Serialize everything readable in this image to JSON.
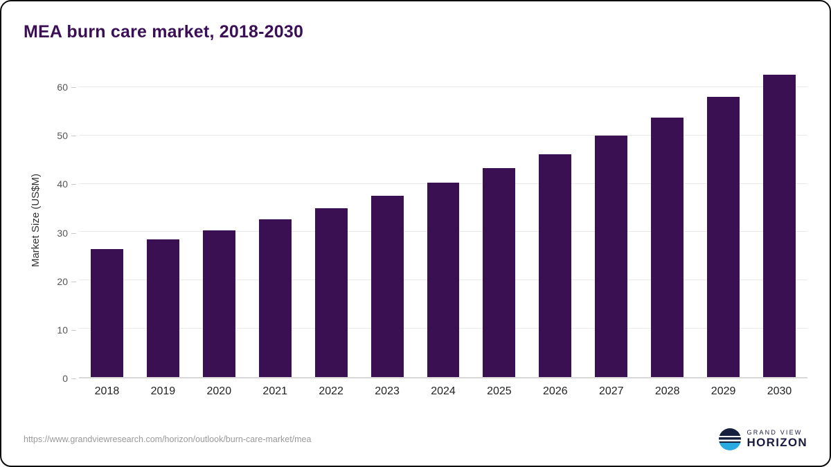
{
  "page": {
    "title": "MEA burn care market, 2018-2030",
    "source_url": "https://www.grandviewresearch.com/horizon/outlook/burn-care-market/mea",
    "logo": {
      "line1": "GRAND VIEW",
      "line2": "HORIZON"
    }
  },
  "colors": {
    "bar": "#3b1053",
    "title": "#3b0f56",
    "gridline": "#e9e9e9",
    "axis": "#d8d8d8",
    "tick_label": "#555555",
    "x_label": "#222222",
    "url_text": "#999999",
    "logo_navy": "#15203e",
    "logo_blue": "#2aaae1"
  },
  "chart_data": {
    "type": "bar",
    "title": "MEA burn care market, 2018-2030",
    "categories": [
      "2018",
      "2019",
      "2020",
      "2021",
      "2022",
      "2023",
      "2024",
      "2025",
      "2026",
      "2027",
      "2028",
      "2029",
      "2030"
    ],
    "values": [
      26.5,
      28.5,
      30.4,
      32.6,
      34.9,
      37.5,
      40.3,
      43.3,
      46.1,
      50.0,
      53.7,
      58.0,
      62.5
    ],
    "xlabel": "",
    "ylabel": "Market Size (US$M)",
    "ylim": [
      0,
      65
    ],
    "yticks": [
      0,
      10,
      20,
      30,
      40,
      50,
      60
    ],
    "grid": true,
    "legend": false,
    "bar_color": "#3b1053"
  }
}
